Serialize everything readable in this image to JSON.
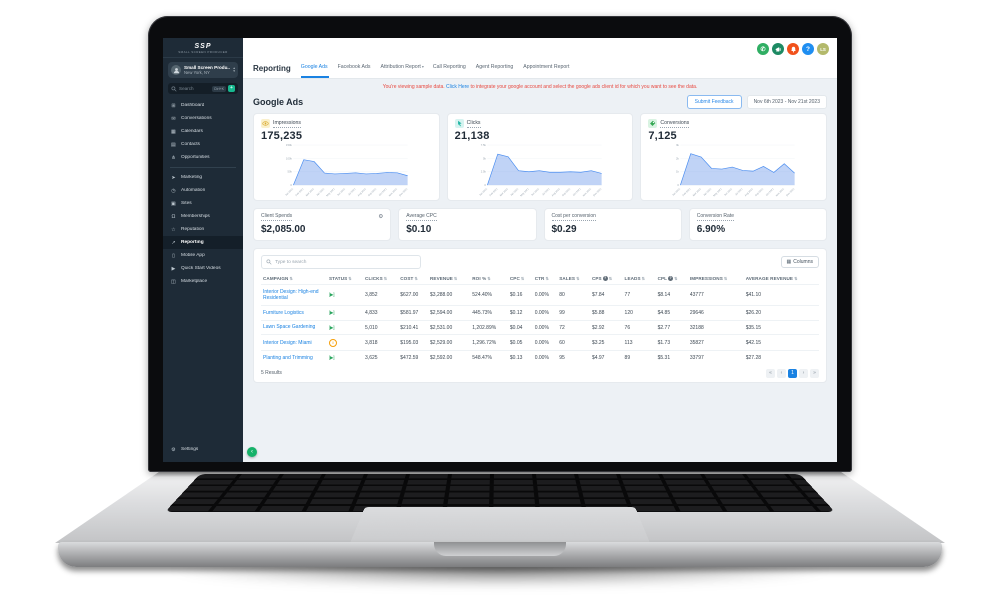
{
  "sidebar": {
    "logo": {
      "text": "SSP",
      "subtext": "SMALL SCREEN PRODUCER"
    },
    "account": {
      "name": "Small Screen Produ...",
      "location": "New York, NY",
      "chevron_up": "▴",
      "chevron_down": "▾"
    },
    "search": {
      "placeholder": "Search",
      "shortcut": "Ctrl+K",
      "add_icon": "+"
    },
    "items": [
      {
        "glyph": "⊞",
        "label": "Dashboard",
        "icon": "dashboard"
      },
      {
        "glyph": "✉",
        "label": "Conversations",
        "icon": "conversations"
      },
      {
        "glyph": "▦",
        "label": "Calendars",
        "icon": "calendars"
      },
      {
        "glyph": "▤",
        "label": "Contacts",
        "icon": "contacts"
      },
      {
        "glyph": "⋔",
        "label": "Opportunities",
        "icon": "opportunities"
      },
      {
        "divider": true
      },
      {
        "glyph": "➤",
        "label": "Marketing",
        "icon": "marketing"
      },
      {
        "glyph": "◷",
        "label": "Automation",
        "icon": "automation"
      },
      {
        "glyph": "▣",
        "label": "Sites",
        "icon": "sites"
      },
      {
        "glyph": "Ω",
        "label": "Memberships",
        "icon": "memberships"
      },
      {
        "glyph": "☆",
        "label": "Reputation",
        "icon": "reputation"
      },
      {
        "glyph": "↗",
        "label": "Reporting",
        "icon": "reporting",
        "class": "active"
      },
      {
        "glyph": "▯",
        "label": "Mobile App",
        "icon": "mobile-app"
      },
      {
        "glyph": "▶",
        "label": "Quick Start Videos",
        "icon": "quick-start-videos"
      },
      {
        "glyph": "◫",
        "label": "Marketplace",
        "icon": "marketplace"
      }
    ],
    "settings_glyph": "⚙",
    "settings_label": "Settings",
    "collapse_glyph": "‹"
  },
  "topbar": {
    "phone_glyph": "✆",
    "help_label": "?",
    "avatar_initials": "LS"
  },
  "header": {
    "title": "Reporting",
    "tabs": [
      {
        "label": "Google Ads",
        "caret": "",
        "class": "active"
      },
      {
        "label": "Facebook Ads",
        "caret": ""
      },
      {
        "label": "Attribution Report",
        "caret": "▾"
      },
      {
        "label": "Call Reporting",
        "caret": ""
      },
      {
        "label": "Agent Reporting",
        "caret": ""
      },
      {
        "label": "Appointment Report",
        "caret": ""
      }
    ]
  },
  "banner": {
    "prefix": "You're viewing sample data.",
    "link": "Click Here",
    "suffix": "to integrate your google account and select the google ads client id for which you want to see the data."
  },
  "page": {
    "heading": "Google Ads",
    "feedback_button": "Submit Feedback",
    "date_range": "Nov 6th 2023 - Nov 21st 2023"
  },
  "chart_data": [
    {
      "type": "area",
      "title": "Impressions",
      "total": "175,235",
      "class": "show-eye",
      "badge_bg": "#faf0cc",
      "line_color": "#4a8df0",
      "fill_color": "rgba(116,158,235,0.45)",
      "x": [
        "Jan 2021",
        "Feb 2021",
        "Mar 2021",
        "Apr 2021",
        "May 2021",
        "Jun 2021",
        "Jul 2021",
        "Aug 2021",
        "Sep 2021",
        "Oct 2021",
        "Nov 2021",
        "Dec 2021"
      ],
      "values": [
        0,
        95000,
        88000,
        45000,
        42000,
        44000,
        46000,
        42000,
        44000,
        47000,
        46000,
        35000
      ],
      "ylim": [
        0,
        150000
      ],
      "yticks": [
        {
          "v": 0,
          "l": "0"
        },
        {
          "v": 50000,
          "l": "50k"
        },
        {
          "v": 100000,
          "l": "100k"
        },
        {
          "v": 150000,
          "l": "150k"
        }
      ]
    },
    {
      "type": "area",
      "title": "Clicks",
      "total": "21,138",
      "class": "show-click",
      "badge_bg": "#d6f3f0",
      "line_color": "#4a8df0",
      "fill_color": "rgba(116,158,235,0.45)",
      "x": [
        "Jan 2021",
        "Feb 2021",
        "Mar 2021",
        "Apr 2021",
        "May 2021",
        "Jun 2021",
        "Jul 2021",
        "Aug 2021",
        "Sep 2021",
        "Oct 2021",
        "Nov 2021",
        "Dec 2021"
      ],
      "values": [
        0,
        5800,
        5300,
        2700,
        2500,
        2700,
        2400,
        2400,
        2500,
        2400,
        2700,
        2200
      ],
      "ylim": [
        0,
        7500
      ],
      "yticks": [
        {
          "v": 0,
          "l": "0"
        },
        {
          "v": 2500,
          "l": "2.5k"
        },
        {
          "v": 5000,
          "l": "5k"
        },
        {
          "v": 7500,
          "l": "7.5k"
        }
      ]
    },
    {
      "type": "area",
      "title": "Conversions",
      "total": "7,125",
      "class": "show-tag",
      "badge_bg": "#d9f3e2",
      "line_color": "#4a8df0",
      "fill_color": "rgba(116,158,235,0.45)",
      "x": [
        "Jan 2021",
        "Feb 2021",
        "Mar 2021",
        "Apr 2021",
        "May 2021",
        "Jun 2021",
        "Jul 2021",
        "Aug 2021",
        "Sep 2021",
        "Oct 2021",
        "Nov 2021",
        "Dec 2021"
      ],
      "values": [
        0,
        2350,
        2100,
        1250,
        1200,
        1350,
        1100,
        1050,
        1400,
        950,
        1600,
        900
      ],
      "ylim": [
        0,
        3000
      ],
      "yticks": [
        {
          "v": 0,
          "l": "0"
        },
        {
          "v": 1000,
          "l": "1k"
        },
        {
          "v": 2000,
          "l": "2k"
        },
        {
          "v": 3000,
          "l": "3k"
        }
      ]
    }
  ],
  "stats": [
    {
      "label": "Client Spends",
      "value": "$2,085.00",
      "gear": "⚙"
    },
    {
      "label": "Average CPC",
      "value": "$0.10"
    },
    {
      "label": "Cost per conversion",
      "value": "$0.29"
    },
    {
      "label": "Conversion Rate",
      "value": "6.90%"
    }
  ],
  "table": {
    "search_placeholder": "Type to search",
    "columns_icon": "▦",
    "columns_label": "Columns",
    "sort_glyph": "⇅",
    "help_glyph": "?",
    "status_icons": {
      "enabled": "[▶]",
      "paused": "‖"
    },
    "headers": [
      {
        "label": "CAMPAIGN",
        "sort": true
      },
      {
        "label": "STATUS",
        "sort": true
      },
      {
        "label": "CLICKS",
        "sort": true
      },
      {
        "label": "COST",
        "sort": true
      },
      {
        "label": "REVENUE",
        "sort": true
      },
      {
        "label": "ROI %",
        "sort": true
      },
      {
        "label": "CPC",
        "sort": true
      },
      {
        "label": "CTR",
        "sort": true
      },
      {
        "label": "SALES",
        "sort": true
      },
      {
        "label": "CPS",
        "help": true,
        "sort": true
      },
      {
        "label": "LEADS",
        "sort": true
      },
      {
        "label": "CPL",
        "help": true,
        "sort": true
      },
      {
        "label": "IMPRESSIONS",
        "sort": true
      },
      {
        "label": "AVERAGE REVENUE",
        "sort": true
      }
    ],
    "rows": [
      {
        "campaign": "Interior Design: High-end Residential",
        "status": "enabled",
        "cells": [
          "3,852",
          "$627.00",
          "$3,288.00",
          "524.40%",
          "$0.16",
          "0.00%",
          "80",
          "$7.84",
          "77",
          "$8.14",
          "43777",
          "$41.10"
        ]
      },
      {
        "campaign": "Furniture Logistics",
        "status": "enabled",
        "cells": [
          "4,833",
          "$581.97",
          "$2,594.00",
          "445.73%",
          "$0.12",
          "0.00%",
          "99",
          "$5.88",
          "120",
          "$4.85",
          "29646",
          "$26.20"
        ]
      },
      {
        "campaign": "Lawn Space Gardening",
        "status": "enabled",
        "cells": [
          "5,010",
          "$210.41",
          "$2,531.00",
          "1,202.89%",
          "$0.04",
          "0.00%",
          "72",
          "$2.92",
          "76",
          "$2.77",
          "32188",
          "$35.15"
        ]
      },
      {
        "campaign": "Interior Design: Miami",
        "status": "paused",
        "cells": [
          "3,818",
          "$195.03",
          "$2,529.00",
          "1,296.72%",
          "$0.05",
          "0.00%",
          "60",
          "$3.25",
          "113",
          "$1.73",
          "35827",
          "$42.15"
        ]
      },
      {
        "campaign": "Planting and Trimming",
        "status": "enabled",
        "cells": [
          "3,625",
          "$472.59",
          "$2,592.00",
          "548.47%",
          "$0.13",
          "0.00%",
          "95",
          "$4.97",
          "89",
          "$5.31",
          "33797",
          "$27.28"
        ]
      }
    ],
    "results_label": "5 Results",
    "pagination": {
      "first": "«",
      "prev": "‹",
      "page": "1",
      "next": "›",
      "last": "»"
    }
  }
}
